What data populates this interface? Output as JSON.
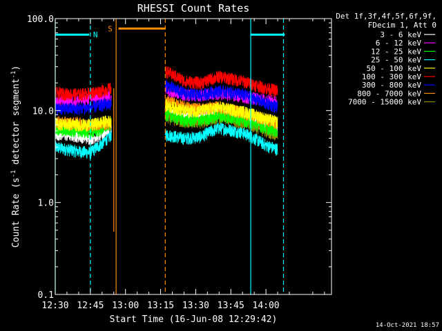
{
  "chart_data": {
    "type": "line",
    "title": "RHESSI Count Rates",
    "xlabel": "Start Time (16-Jun-08 12:29:42)",
    "ylabel": "Count Rate (s",
    "ylabel_sup": "-1",
    "ylabel_tail": " detector segment",
    "ylabel_close": ")",
    "y_scale": "log",
    "ylim": [
      0.1,
      100
    ],
    "xlim_minutes": [
      0,
      118
    ],
    "x_ticks": [
      {
        "t": 0,
        "label": "12:30"
      },
      {
        "t": 15,
        "label": "12:45"
      },
      {
        "t": 30,
        "label": "13:00"
      },
      {
        "t": 45,
        "label": "13:15"
      },
      {
        "t": 60,
        "label": "13:30"
      },
      {
        "t": 75,
        "label": "13:45"
      },
      {
        "t": 90,
        "label": "14:00"
      }
    ],
    "y_ticks": [
      {
        "v": 0.1,
        "label": "0.1"
      },
      {
        "v": 1.0,
        "label": "1.0"
      },
      {
        "v": 10.0,
        "label": "10.0"
      },
      {
        "v": 100.0,
        "label": "100.0"
      }
    ],
    "legend_header": [
      "Det 1f,3f,4f,5f,6f,9f,",
      "FDecim 1, Att 0"
    ],
    "legend_position": "outside-right",
    "data_gap_minutes": [
      24,
      47
    ],
    "series": [
      {
        "name": "3 - 6 keV",
        "color": "#ffffff",
        "segment1": [
          [
            0,
            5.6
          ],
          [
            10,
            5.3
          ],
          [
            15,
            5.0
          ],
          [
            20,
            5.5
          ],
          [
            24,
            7.0
          ]
        ],
        "segment2": [
          [
            47,
            9.8
          ],
          [
            55,
            8.6
          ],
          [
            62,
            8.6
          ],
          [
            70,
            9.6
          ],
          [
            80,
            8.8
          ],
          [
            90,
            6.8
          ],
          [
            95,
            6.0
          ]
        ]
      },
      {
        "name": "6 - 12 keV",
        "color": "#ff00ff",
        "segment1": [
          [
            0,
            12.5
          ],
          [
            10,
            13.0
          ],
          [
            15,
            13.5
          ],
          [
            20,
            14.0
          ],
          [
            24,
            14.5
          ]
        ],
        "segment2": [
          [
            47,
            17.0
          ],
          [
            55,
            15.0
          ],
          [
            62,
            14.8
          ],
          [
            70,
            15.5
          ],
          [
            80,
            14.2
          ],
          [
            90,
            13.0
          ],
          [
            95,
            12.5
          ]
        ]
      },
      {
        "name": "12 - 25 keV",
        "color": "#00ff00",
        "segment1": [
          [
            0,
            6.2
          ],
          [
            10,
            6.0
          ],
          [
            15,
            5.8
          ],
          [
            20,
            6.3
          ],
          [
            24,
            7.3
          ]
        ],
        "segment2": [
          [
            47,
            9.2
          ],
          [
            55,
            7.8
          ],
          [
            62,
            7.8
          ],
          [
            70,
            8.8
          ],
          [
            80,
            8.0
          ],
          [
            90,
            6.5
          ],
          [
            95,
            6.0
          ]
        ]
      },
      {
        "name": "25 - 50 keV",
        "color": "#00ffff",
        "segment1": [
          [
            0,
            4.0
          ],
          [
            10,
            3.6
          ],
          [
            15,
            3.5
          ],
          [
            20,
            4.4
          ],
          [
            24,
            5.5
          ]
        ],
        "segment2": [
          [
            47,
            5.5
          ],
          [
            55,
            5.0
          ],
          [
            62,
            5.2
          ],
          [
            70,
            6.5
          ],
          [
            80,
            5.8
          ],
          [
            90,
            4.2
          ],
          [
            95,
            3.8
          ]
        ]
      },
      {
        "name": "50 - 100 keV",
        "color": "#ffff00",
        "segment1": [
          [
            0,
            7.2
          ],
          [
            10,
            7.0
          ],
          [
            15,
            7.0
          ],
          [
            20,
            7.5
          ],
          [
            24,
            7.8
          ]
        ],
        "segment2": [
          [
            47,
            11.5
          ],
          [
            55,
            10.0
          ],
          [
            62,
            10.0
          ],
          [
            70,
            10.8
          ],
          [
            80,
            9.8
          ],
          [
            90,
            8.2
          ],
          [
            95,
            7.5
          ]
        ]
      },
      {
        "name": "100 - 300 keV",
        "color": "#ff0000",
        "segment1": [
          [
            0,
            15.5
          ],
          [
            10,
            15.0
          ],
          [
            15,
            15.5
          ],
          [
            20,
            16.5
          ],
          [
            24,
            17.5
          ]
        ],
        "segment2": [
          [
            47,
            27.0
          ],
          [
            55,
            21.0
          ],
          [
            62,
            20.0
          ],
          [
            70,
            23.5
          ],
          [
            80,
            21.0
          ],
          [
            90,
            17.5
          ],
          [
            95,
            16.5
          ]
        ]
      },
      {
        "name": "300 - 800 keV",
        "color": "#0000ff",
        "segment1": [
          [
            0,
            10.5
          ],
          [
            10,
            10.5
          ],
          [
            15,
            10.8
          ],
          [
            20,
            11.5
          ],
          [
            24,
            12.0
          ]
        ],
        "segment2": [
          [
            47,
            19.0
          ],
          [
            55,
            15.5
          ],
          [
            62,
            14.8
          ],
          [
            70,
            16.5
          ],
          [
            80,
            15.0
          ],
          [
            90,
            12.0
          ],
          [
            95,
            11.0
          ]
        ]
      },
      {
        "name": "800 - 7000 keV",
        "color": "#ff8c00",
        "segment1": [
          [
            0,
            7.5
          ],
          [
            10,
            7.3
          ],
          [
            15,
            7.0
          ],
          [
            20,
            7.2
          ],
          [
            24,
            7.2
          ]
        ],
        "segment2": [
          [
            47,
            13.0
          ],
          [
            55,
            11.0
          ],
          [
            62,
            10.5
          ],
          [
            70,
            11.0
          ],
          [
            80,
            9.5
          ],
          [
            90,
            8.0
          ],
          [
            95,
            7.3
          ]
        ]
      },
      {
        "name": "7000 - 15000 keV",
        "color": "#8b8b00",
        "segment1": [
          [
            0,
            6.8
          ],
          [
            10,
            6.6
          ],
          [
            15,
            6.5
          ],
          [
            20,
            6.8
          ],
          [
            24,
            7.0
          ]
        ],
        "segment2": [
          [
            47,
            8.5
          ],
          [
            55,
            7.5
          ],
          [
            62,
            7.5
          ],
          [
            70,
            8.5
          ],
          [
            80,
            7.5
          ],
          [
            90,
            6.0
          ],
          [
            95,
            5.5
          ]
        ]
      }
    ],
    "flags": [
      {
        "label": "N",
        "color": "#00ffff",
        "y": 67,
        "bars": [
          [
            0,
            14.5
          ],
          [
            83.5,
            98
          ]
        ],
        "solid_edges": [
          0,
          83.5
        ],
        "dashed_edges": [
          15,
          97.5
        ]
      },
      {
        "label": "S",
        "color": "#ff8c00",
        "y": 78,
        "bars": [
          [
            27,
            47
          ]
        ],
        "solid_edges": [
          26
        ],
        "dashed_edges": [
          47
        ]
      }
    ],
    "spike": {
      "color": "#ff8c00",
      "t": 25,
      "y_low": 0.48,
      "y_high": 17.5
    }
  },
  "timestamp": "14-Oct-2021 18:57"
}
